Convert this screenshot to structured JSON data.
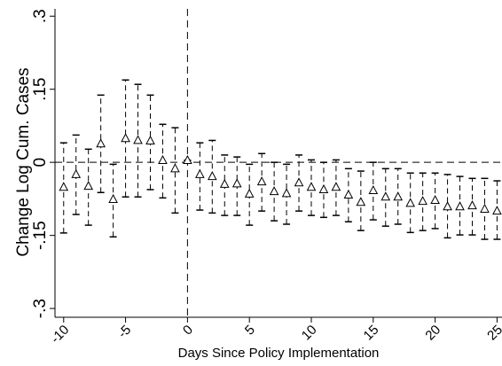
{
  "chart_data": {
    "type": "errorbar",
    "x_label": "Days Since Policy Implementation",
    "y_label": "Change Log Cum. Cases",
    "x": [
      -10,
      -9,
      -8,
      -7,
      -6,
      -5,
      -4,
      -3,
      -2,
      -1,
      0,
      1,
      2,
      3,
      4,
      5,
      6,
      7,
      8,
      9,
      10,
      11,
      12,
      13,
      14,
      15,
      16,
      17,
      18,
      19,
      20,
      21,
      22,
      23,
      24,
      25
    ],
    "values": [
      -0.051,
      -0.025,
      -0.049,
      0.038,
      -0.076,
      0.049,
      0.045,
      0.044,
      0.004,
      -0.013,
      0.004,
      -0.025,
      -0.029,
      -0.045,
      -0.044,
      -0.065,
      -0.04,
      -0.06,
      -0.064,
      -0.042,
      -0.051,
      -0.056,
      -0.051,
      -0.067,
      -0.082,
      -0.058,
      -0.071,
      -0.071,
      -0.084,
      -0.08,
      -0.078,
      -0.091,
      -0.091,
      -0.089,
      -0.096,
      -0.1
    ],
    "lower": [
      -0.145,
      -0.107,
      -0.129,
      -0.062,
      -0.153,
      -0.071,
      -0.071,
      -0.056,
      -0.073,
      -0.104,
      0.004,
      -0.098,
      -0.104,
      -0.109,
      -0.109,
      -0.129,
      -0.1,
      -0.12,
      -0.127,
      -0.1,
      -0.109,
      -0.113,
      -0.109,
      -0.122,
      -0.14,
      -0.118,
      -0.131,
      -0.127,
      -0.144,
      -0.14,
      -0.136,
      -0.155,
      -0.149,
      -0.149,
      -0.158,
      -0.158
    ],
    "upper": [
      0.04,
      0.056,
      0.027,
      0.138,
      -0.004,
      0.169,
      0.16,
      0.138,
      0.078,
      0.071,
      0.004,
      0.04,
      0.045,
      0.015,
      0.011,
      -0.004,
      0.018,
      0,
      -0.004,
      0.015,
      0.005,
      0,
      0.005,
      -0.013,
      -0.018,
      0,
      -0.013,
      -0.013,
      -0.022,
      -0.022,
      -0.022,
      -0.025,
      -0.029,
      -0.033,
      -0.033,
      -0.038
    ],
    "color": "#000000",
    "xlim": [
      -10.7,
      25.4
    ],
    "xticks": [
      -10,
      -5,
      0,
      5,
      10,
      15,
      20,
      25
    ],
    "ylim": [
      -0.318,
      0.315
    ],
    "yticks": [
      {
        "value": -0.3,
        "label": "-.3"
      },
      {
        "value": -0.15,
        "label": "-.15"
      },
      0,
      {
        "value": 0.15,
        "label": ".15"
      },
      {
        "value": 0.3,
        "label": ".3"
      }
    ],
    "reference_lines": {
      "x": 0,
      "y": 0
    }
  }
}
